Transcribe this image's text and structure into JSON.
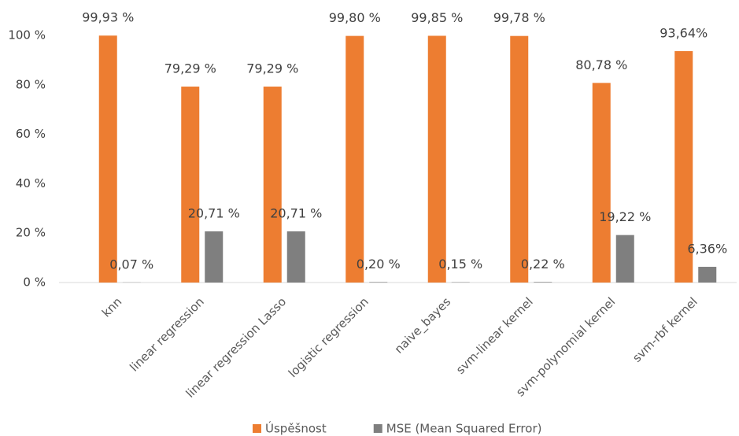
{
  "chart_data": {
    "type": "bar",
    "categories": [
      "knn",
      "linear regression",
      "linear regression Lasso",
      "logistic regression",
      "naive_bayes",
      "svm-linear kernel",
      "svm-polynomial kernel",
      "svm-rbf kernel"
    ],
    "series": [
      {
        "name": "Úspěšnost",
        "color": "#ed7d31",
        "values": [
          99.93,
          79.29,
          79.29,
          99.8,
          99.85,
          99.78,
          80.78,
          93.64
        ],
        "value_labels": [
          "99,93 %",
          "79,29 %",
          "79,29 %",
          "99,80 %",
          "99,85 %",
          "99,78 %",
          "80,78 %",
          "93,64%"
        ]
      },
      {
        "name": "MSE (Mean Squared Error)",
        "color": "#7f7f7f",
        "values": [
          0.07,
          20.71,
          20.71,
          0.2,
          0.15,
          0.22,
          19.22,
          6.36
        ],
        "value_labels": [
          "0,07 %",
          "20,71 %",
          "20,71 %",
          "0,20 %",
          "0,15 %",
          "0,22 %",
          "19,22 %",
          "6,36%"
        ]
      }
    ],
    "ylim": [
      0,
      100
    ],
    "yticks": [
      {
        "value": 0,
        "label": "0 %"
      },
      {
        "value": 20,
        "label": "20 %"
      },
      {
        "value": 40,
        "label": "40 %"
      },
      {
        "value": 60,
        "label": "60 %"
      },
      {
        "value": 80,
        "label": "80 %"
      },
      {
        "value": 100,
        "label": "100 %"
      }
    ],
    "grid": false,
    "legend": "bottom"
  }
}
